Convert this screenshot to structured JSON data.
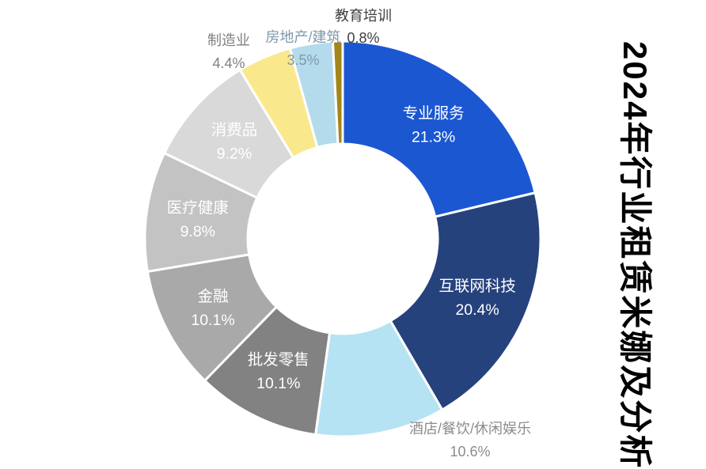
{
  "title": {
    "vertical_text": "2024年行业租赁米娜及分析"
  },
  "chart_data": {
    "type": "pie",
    "subtype": "donut",
    "title": "2024年行业租赁米娜及分析",
    "unit": "%",
    "start_angle_deg": 0,
    "direction": "clockwise",
    "inner_radius_ratio": 0.48,
    "legend": "none",
    "slices": [
      {
        "label": "专业服务",
        "value": 21.3,
        "display": "21.3%",
        "color": "#1c57d2",
        "label_placement": "inside",
        "label_color": "#ffffff"
      },
      {
        "label": "互联网科技",
        "value": 20.4,
        "display": "20.4%",
        "color": "#26427d",
        "label_placement": "inside",
        "label_color": "#ffffff"
      },
      {
        "label": "酒店/餐饮/休闲娱乐",
        "value": 10.6,
        "display": "10.6%",
        "color": "#b6e3f3",
        "label_placement": "outside",
        "label_color": "#8c8c8c"
      },
      {
        "label": "批发零售",
        "value": 10.1,
        "display": "10.1%",
        "color": "#828282",
        "label_placement": "inside",
        "label_color": "#ffffff"
      },
      {
        "label": "金融",
        "value": 10.1,
        "display": "10.1%",
        "color": "#a9a9a9",
        "label_placement": "inside",
        "label_color": "#ffffff"
      },
      {
        "label": "医疗健康",
        "value": 9.8,
        "display": "9.8%",
        "color": "#c3c3c3",
        "label_placement": "inside",
        "label_color": "#ffffff"
      },
      {
        "label": "消费品",
        "value": 9.2,
        "display": "9.2%",
        "color": "#d9d9d9",
        "label_placement": "inside",
        "label_color": "#ffffff"
      },
      {
        "label": "制造业",
        "value": 4.4,
        "display": "4.4%",
        "color": "#fae88d",
        "label_placement": "outside",
        "label_color": "#808080"
      },
      {
        "label": "房地产/建筑",
        "value": 3.5,
        "display": "3.5%",
        "color": "#b4dbec",
        "label_placement": "outside",
        "label_color": "#7e99ac"
      },
      {
        "label": "教育培训",
        "value": 0.8,
        "display": "0.8%",
        "color": "#a3861a",
        "label_placement": "outside",
        "label_color": "#3f3f3f"
      }
    ]
  }
}
